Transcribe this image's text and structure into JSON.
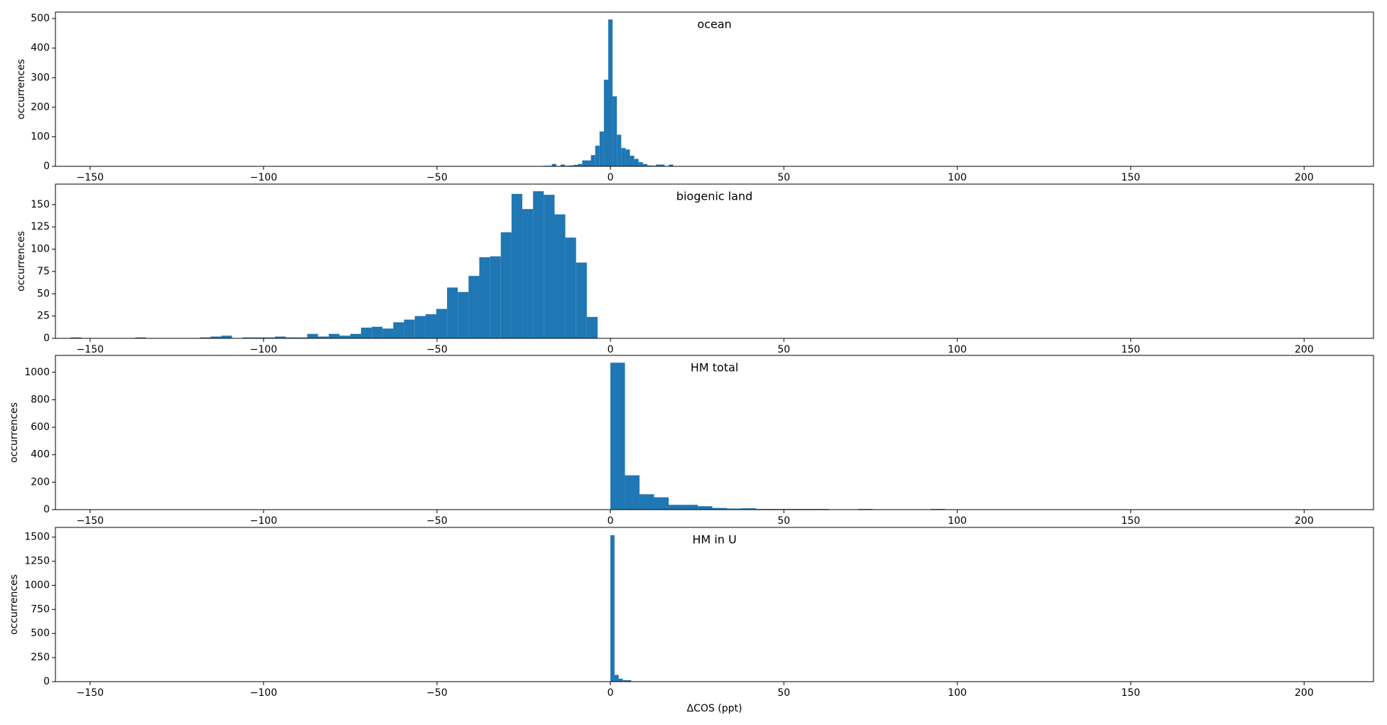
{
  "chart_data": [
    {
      "type": "histogram",
      "title": "ocean",
      "y_label": "occurrences",
      "color": "#1f77b4",
      "bins": [
        -19.375,
        -18.125,
        -16.875,
        -15.625,
        -14.375,
        -13.125,
        -11.875,
        -10.625,
        -9.375,
        -8.125,
        -6.875,
        -5.625,
        -4.375,
        -3.125,
        -1.875,
        -0.625,
        0.625,
        1.875,
        3.125,
        4.375,
        5.625,
        6.875,
        8.125,
        9.375,
        10.625,
        11.875,
        13.125,
        14.375,
        15.625,
        16.875,
        18.125,
        19.375,
        20.625
      ],
      "values": [
        2,
        2,
        8,
        1,
        6,
        2,
        3,
        5,
        8,
        20,
        20,
        38,
        70,
        118,
        293,
        497,
        237,
        107,
        62,
        57,
        36,
        25,
        14,
        8,
        3,
        2,
        6,
        6,
        1,
        6,
        1,
        0
      ],
      "xlim": [
        -160,
        220
      ],
      "ylim": [
        0,
        522
      ],
      "xticks": [
        {
          "value": -150,
          "label": "−150"
        },
        {
          "value": -100,
          "label": "−100"
        },
        {
          "value": -50,
          "label": "−50"
        },
        0,
        50,
        100,
        150,
        200
      ],
      "yticks": [
        0,
        100,
        200,
        300,
        400,
        500
      ]
    },
    {
      "type": "histogram",
      "title": "biogenic land",
      "y_label": "occurrences",
      "color": "#1f77b4",
      "bins": [
        -155.6,
        -152.5,
        -149.4,
        -146.3,
        -143.2,
        -140.1,
        -137.0,
        -133.9,
        -130.8,
        -127.7,
        -124.6,
        -121.5,
        -118.4,
        -115.3,
        -112.2,
        -109.1,
        -106.0,
        -102.9,
        -99.8,
        -96.7,
        -93.6,
        -90.5,
        -87.4,
        -84.3,
        -81.2,
        -78.1,
        -75.0,
        -71.9,
        -68.8,
        -65.7,
        -62.6,
        -59.5,
        -56.4,
        -53.3,
        -50.2,
        -47.1,
        -44.0,
        -40.9,
        -37.8,
        -34.7,
        -31.6,
        -28.5,
        -25.4,
        -22.3,
        -19.2,
        -16.1,
        -13.0,
        -9.9,
        -6.8,
        -3.7
      ],
      "values": [
        1,
        0,
        0,
        0,
        0,
        0,
        1,
        0,
        0,
        0,
        0,
        0,
        1,
        2,
        3,
        0,
        1,
        1,
        1,
        2,
        1,
        1,
        5,
        2,
        5,
        3,
        5,
        12,
        13,
        11,
        18,
        21,
        25,
        27,
        33,
        57,
        52,
        70,
        91,
        92,
        119,
        162,
        145,
        165,
        161,
        139,
        113,
        85,
        24
      ],
      "xlim": [
        -160,
        220
      ],
      "ylim": [
        0,
        173
      ],
      "xticks": [
        {
          "value": -150,
          "label": "−150"
        },
        {
          "value": -100,
          "label": "−100"
        },
        {
          "value": -50,
          "label": "−50"
        },
        0,
        50,
        100,
        150,
        200
      ],
      "yticks": [
        0,
        25,
        50,
        75,
        100,
        125,
        150
      ]
    },
    {
      "type": "histogram",
      "title": "HM total",
      "y_label": "occurrences",
      "color": "#1f77b4",
      "bins": [
        0,
        4.2,
        8.4,
        12.6,
        16.8,
        21.0,
        25.2,
        29.4,
        33.6,
        37.8,
        42.0,
        46.2,
        50.4,
        54.6,
        58.8,
        63.0,
        67.2,
        71.4,
        75.6,
        79.8,
        84.0,
        88.2,
        92.4,
        96.6
      ],
      "values": [
        1070,
        250,
        112,
        90,
        35,
        35,
        25,
        12,
        8,
        10,
        5,
        5,
        5,
        5,
        5,
        2,
        2,
        5,
        1,
        1,
        1,
        1,
        5
      ],
      "xlim": [
        -160,
        220
      ],
      "ylim": [
        0,
        1123
      ],
      "xticks": [
        {
          "value": -150,
          "label": "−150"
        },
        {
          "value": -100,
          "label": "−100"
        },
        {
          "value": -50,
          "label": "−50"
        },
        0,
        50,
        100,
        150,
        200
      ],
      "yticks": [
        0,
        200,
        400,
        600,
        800,
        1000
      ]
    },
    {
      "type": "histogram",
      "title": "HM in U",
      "y_label": "occurrences",
      "x_label": "ΔCOS (ppt)",
      "color": "#1f77b4",
      "bins": [
        0,
        1.2,
        2.4,
        3.6,
        4.8,
        6.0
      ],
      "values": [
        1520,
        70,
        30,
        15,
        15
      ],
      "xlim": [
        -160,
        220
      ],
      "ylim": [
        0,
        1601
      ],
      "xticks": [
        {
          "value": -150,
          "label": "−150"
        },
        {
          "value": -100,
          "label": "−100"
        },
        {
          "value": -50,
          "label": "−50"
        },
        0,
        50,
        100,
        150,
        200
      ],
      "yticks": [
        0,
        250,
        500,
        750,
        1000,
        1250,
        1500
      ]
    }
  ]
}
